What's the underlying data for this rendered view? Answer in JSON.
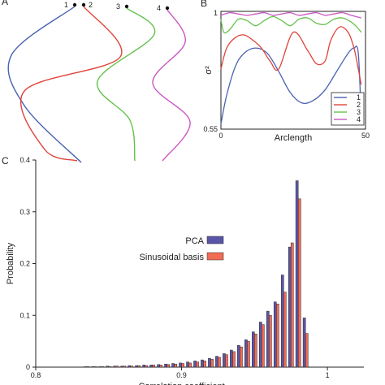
{
  "panels": {
    "a": "A",
    "b": "B",
    "c": "C"
  },
  "colors": {
    "s1": "#4a63b0",
    "s2": "#e0433a",
    "s3": "#63c24a",
    "s4": "#c957c2",
    "pca": "#5b55a8",
    "sinusoidal": "#f26c54"
  },
  "chart_data": [
    {
      "type": "line",
      "panel": "A",
      "title": "",
      "curve_labels": [
        "1",
        "2",
        "3",
        "4"
      ],
      "series": [
        {
          "name": "1",
          "color": "#4a63b0",
          "shape": "curve",
          "points": [
            [
              92,
              8
            ],
            [
              14,
              68
            ],
            [
              30,
              130
            ],
            [
              100,
              200
            ]
          ]
        },
        {
          "name": "2",
          "color": "#e0433a",
          "shape": "curve",
          "points": [
            [
              103,
              8
            ],
            [
              148,
              70
            ],
            [
              30,
              112
            ],
            [
              55,
              184
            ],
            [
              95,
              198
            ]
          ]
        },
        {
          "name": "3",
          "color": "#63c24a",
          "shape": "curve",
          "points": [
            [
              156,
              10
            ],
            [
              190,
              42
            ],
            [
              120,
              100
            ],
            [
              160,
              148
            ],
            [
              166,
              198
            ]
          ]
        },
        {
          "name": "4",
          "color": "#c957c2",
          "shape": "curve",
          "points": [
            [
              206,
              12
            ],
            [
              228,
              52
            ],
            [
              188,
              102
            ],
            [
              234,
              150
            ],
            [
              200,
              198
            ]
          ]
        }
      ]
    },
    {
      "type": "line",
      "panel": "B",
      "xlabel": "Arclength",
      "ylabel": "σ²",
      "xlim": [
        0,
        50
      ],
      "ylim": [
        0.55,
        1
      ],
      "x_ticks": [
        "0",
        "50"
      ],
      "y_ticks": [
        "0.55",
        "1"
      ],
      "legend": [
        "1",
        "2",
        "3",
        "4"
      ],
      "legend_position": "bottom-right",
      "series": [
        {
          "name": "1",
          "color": "#4a63b0",
          "x": [
            0,
            2,
            5,
            8,
            12,
            16,
            20,
            24,
            28,
            32,
            36,
            40,
            44,
            46,
            47.5,
            48.5
          ],
          "y": [
            0.57,
            0.68,
            0.79,
            0.84,
            0.86,
            0.84,
            0.77,
            0.69,
            0.65,
            0.66,
            0.7,
            0.77,
            0.84,
            0.86,
            0.84,
            0.59
          ]
        },
        {
          "name": "2",
          "color": "#e0433a",
          "x": [
            0,
            2,
            5,
            8,
            11,
            14,
            17,
            20,
            25,
            30,
            33,
            36,
            38,
            41,
            44,
            46,
            47.5,
            48.5
          ],
          "y": [
            0.78,
            0.86,
            0.9,
            0.91,
            0.89,
            0.86,
            0.81,
            0.78,
            0.92,
            0.85,
            0.8,
            0.81,
            0.89,
            0.94,
            0.92,
            0.86,
            0.78,
            0.72
          ]
        },
        {
          "name": "3",
          "color": "#63c24a",
          "x": [
            0,
            1,
            3,
            6,
            9,
            12,
            15,
            18,
            21,
            24,
            27,
            30,
            33,
            36,
            39,
            42,
            45,
            47,
            48.5
          ],
          "y": [
            0.97,
            0.92,
            0.93,
            0.97,
            0.965,
            0.945,
            0.965,
            0.98,
            0.965,
            0.945,
            0.97,
            0.975,
            0.955,
            0.95,
            0.97,
            0.975,
            0.96,
            0.94,
            0.92
          ]
        },
        {
          "name": "4",
          "color": "#c957c2",
          "x": [
            0,
            3,
            6,
            9,
            12,
            15,
            18,
            21,
            24,
            27,
            30,
            33,
            36,
            39,
            42,
            45,
            48.5
          ],
          "y": [
            0.985,
            0.995,
            0.99,
            0.985,
            0.99,
            0.995,
            0.985,
            0.99,
            0.995,
            0.985,
            0.99,
            0.995,
            0.985,
            0.99,
            0.995,
            0.985,
            0.975
          ]
        }
      ]
    },
    {
      "type": "bar",
      "panel": "C",
      "xlabel": "Correlation coefficient",
      "ylabel": "Probability",
      "xlim": [
        0.8,
        1.025
      ],
      "ylim": [
        0,
        0.4
      ],
      "x_ticks": [
        "0.8",
        "0.9",
        "1"
      ],
      "y_ticks": [
        "0",
        "0.1",
        "0.2",
        "0.3",
        "0.4"
      ],
      "legend": [
        "PCA",
        "Sinusoidal basis"
      ],
      "legend_position": "middle-right",
      "categories": [
        0.805,
        0.81,
        0.815,
        0.82,
        0.825,
        0.83,
        0.835,
        0.84,
        0.845,
        0.85,
        0.855,
        0.86,
        0.865,
        0.87,
        0.875,
        0.88,
        0.885,
        0.89,
        0.895,
        0.9,
        0.905,
        0.91,
        0.915,
        0.92,
        0.925,
        0.93,
        0.935,
        0.94,
        0.945,
        0.95,
        0.955,
        0.96,
        0.965,
        0.97,
        0.975,
        0.98,
        0.985,
        0.99,
        0.995
      ],
      "series": [
        {
          "name": "PCA",
          "values": [
            0,
            0,
            0,
            0,
            0,
            0,
            0.001,
            0.001,
            0.001,
            0.002,
            0.002,
            0.002,
            0.003,
            0.003,
            0.004,
            0.004,
            0.005,
            0.006,
            0.007,
            0.008,
            0.01,
            0.012,
            0.014,
            0.017,
            0.021,
            0.026,
            0.033,
            0.042,
            0.053,
            0.068,
            0.087,
            0.108,
            0.126,
            0.178,
            0.232,
            0.36,
            0.095,
            0,
            0
          ]
        },
        {
          "name": "Sinusoidal basis",
          "values": [
            0,
            0,
            0,
            0,
            0,
            0,
            0.001,
            0.001,
            0.001,
            0.001,
            0.002,
            0.002,
            0.002,
            0.003,
            0.003,
            0.004,
            0.004,
            0.005,
            0.006,
            0.007,
            0.008,
            0.01,
            0.012,
            0.015,
            0.019,
            0.024,
            0.03,
            0.039,
            0.05,
            0.064,
            0.082,
            0.1,
            0.122,
            0.145,
            0.24,
            0.325,
            0.065,
            0,
            0
          ]
        }
      ]
    }
  ]
}
